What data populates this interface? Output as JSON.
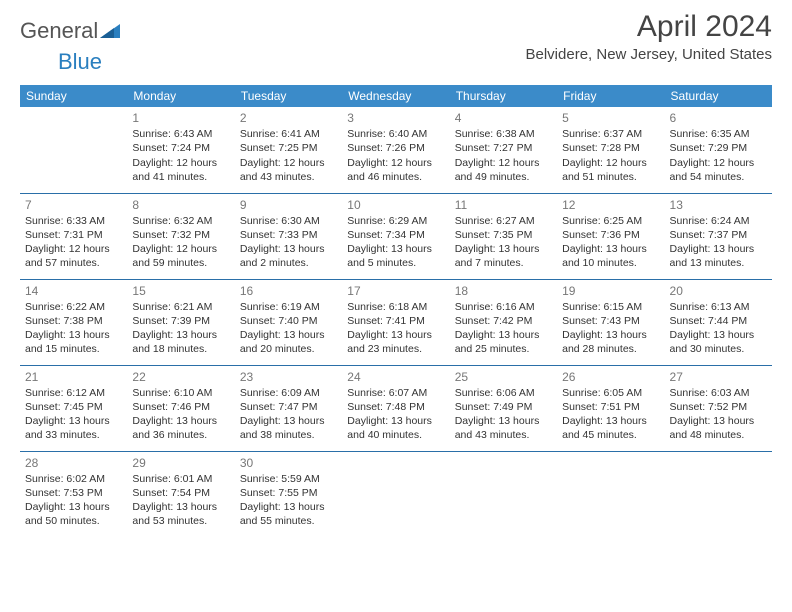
{
  "logo": {
    "text1": "General",
    "text2": "Blue",
    "accent": "#2a7fbf"
  },
  "title": "April 2024",
  "location": "Belvidere, New Jersey, United States",
  "colors": {
    "header_bg": "#3b8bc9",
    "header_text": "#ffffff",
    "row_divider": "#2a6fa8",
    "day_number": "#777777",
    "body_text": "#333333",
    "page_bg": "#ffffff"
  },
  "font": {
    "family": "Arial",
    "title_size": 30,
    "location_size": 15,
    "weekday_size": 12,
    "cell_size": 10.5
  },
  "weekdays": [
    "Sunday",
    "Monday",
    "Tuesday",
    "Wednesday",
    "Thursday",
    "Friday",
    "Saturday"
  ],
  "weeks": [
    [
      null,
      {
        "n": "1",
        "sr": "Sunrise: 6:43 AM",
        "ss": "Sunset: 7:24 PM",
        "d1": "Daylight: 12 hours",
        "d2": "and 41 minutes."
      },
      {
        "n": "2",
        "sr": "Sunrise: 6:41 AM",
        "ss": "Sunset: 7:25 PM",
        "d1": "Daylight: 12 hours",
        "d2": "and 43 minutes."
      },
      {
        "n": "3",
        "sr": "Sunrise: 6:40 AM",
        "ss": "Sunset: 7:26 PM",
        "d1": "Daylight: 12 hours",
        "d2": "and 46 minutes."
      },
      {
        "n": "4",
        "sr": "Sunrise: 6:38 AM",
        "ss": "Sunset: 7:27 PM",
        "d1": "Daylight: 12 hours",
        "d2": "and 49 minutes."
      },
      {
        "n": "5",
        "sr": "Sunrise: 6:37 AM",
        "ss": "Sunset: 7:28 PM",
        "d1": "Daylight: 12 hours",
        "d2": "and 51 minutes."
      },
      {
        "n": "6",
        "sr": "Sunrise: 6:35 AM",
        "ss": "Sunset: 7:29 PM",
        "d1": "Daylight: 12 hours",
        "d2": "and 54 minutes."
      }
    ],
    [
      {
        "n": "7",
        "sr": "Sunrise: 6:33 AM",
        "ss": "Sunset: 7:31 PM",
        "d1": "Daylight: 12 hours",
        "d2": "and 57 minutes."
      },
      {
        "n": "8",
        "sr": "Sunrise: 6:32 AM",
        "ss": "Sunset: 7:32 PM",
        "d1": "Daylight: 12 hours",
        "d2": "and 59 minutes."
      },
      {
        "n": "9",
        "sr": "Sunrise: 6:30 AM",
        "ss": "Sunset: 7:33 PM",
        "d1": "Daylight: 13 hours",
        "d2": "and 2 minutes."
      },
      {
        "n": "10",
        "sr": "Sunrise: 6:29 AM",
        "ss": "Sunset: 7:34 PM",
        "d1": "Daylight: 13 hours",
        "d2": "and 5 minutes."
      },
      {
        "n": "11",
        "sr": "Sunrise: 6:27 AM",
        "ss": "Sunset: 7:35 PM",
        "d1": "Daylight: 13 hours",
        "d2": "and 7 minutes."
      },
      {
        "n": "12",
        "sr": "Sunrise: 6:25 AM",
        "ss": "Sunset: 7:36 PM",
        "d1": "Daylight: 13 hours",
        "d2": "and 10 minutes."
      },
      {
        "n": "13",
        "sr": "Sunrise: 6:24 AM",
        "ss": "Sunset: 7:37 PM",
        "d1": "Daylight: 13 hours",
        "d2": "and 13 minutes."
      }
    ],
    [
      {
        "n": "14",
        "sr": "Sunrise: 6:22 AM",
        "ss": "Sunset: 7:38 PM",
        "d1": "Daylight: 13 hours",
        "d2": "and 15 minutes."
      },
      {
        "n": "15",
        "sr": "Sunrise: 6:21 AM",
        "ss": "Sunset: 7:39 PM",
        "d1": "Daylight: 13 hours",
        "d2": "and 18 minutes."
      },
      {
        "n": "16",
        "sr": "Sunrise: 6:19 AM",
        "ss": "Sunset: 7:40 PM",
        "d1": "Daylight: 13 hours",
        "d2": "and 20 minutes."
      },
      {
        "n": "17",
        "sr": "Sunrise: 6:18 AM",
        "ss": "Sunset: 7:41 PM",
        "d1": "Daylight: 13 hours",
        "d2": "and 23 minutes."
      },
      {
        "n": "18",
        "sr": "Sunrise: 6:16 AM",
        "ss": "Sunset: 7:42 PM",
        "d1": "Daylight: 13 hours",
        "d2": "and 25 minutes."
      },
      {
        "n": "19",
        "sr": "Sunrise: 6:15 AM",
        "ss": "Sunset: 7:43 PM",
        "d1": "Daylight: 13 hours",
        "d2": "and 28 minutes."
      },
      {
        "n": "20",
        "sr": "Sunrise: 6:13 AM",
        "ss": "Sunset: 7:44 PM",
        "d1": "Daylight: 13 hours",
        "d2": "and 30 minutes."
      }
    ],
    [
      {
        "n": "21",
        "sr": "Sunrise: 6:12 AM",
        "ss": "Sunset: 7:45 PM",
        "d1": "Daylight: 13 hours",
        "d2": "and 33 minutes."
      },
      {
        "n": "22",
        "sr": "Sunrise: 6:10 AM",
        "ss": "Sunset: 7:46 PM",
        "d1": "Daylight: 13 hours",
        "d2": "and 36 minutes."
      },
      {
        "n": "23",
        "sr": "Sunrise: 6:09 AM",
        "ss": "Sunset: 7:47 PM",
        "d1": "Daylight: 13 hours",
        "d2": "and 38 minutes."
      },
      {
        "n": "24",
        "sr": "Sunrise: 6:07 AM",
        "ss": "Sunset: 7:48 PM",
        "d1": "Daylight: 13 hours",
        "d2": "and 40 minutes."
      },
      {
        "n": "25",
        "sr": "Sunrise: 6:06 AM",
        "ss": "Sunset: 7:49 PM",
        "d1": "Daylight: 13 hours",
        "d2": "and 43 minutes."
      },
      {
        "n": "26",
        "sr": "Sunrise: 6:05 AM",
        "ss": "Sunset: 7:51 PM",
        "d1": "Daylight: 13 hours",
        "d2": "and 45 minutes."
      },
      {
        "n": "27",
        "sr": "Sunrise: 6:03 AM",
        "ss": "Sunset: 7:52 PM",
        "d1": "Daylight: 13 hours",
        "d2": "and 48 minutes."
      }
    ],
    [
      {
        "n": "28",
        "sr": "Sunrise: 6:02 AM",
        "ss": "Sunset: 7:53 PM",
        "d1": "Daylight: 13 hours",
        "d2": "and 50 minutes."
      },
      {
        "n": "29",
        "sr": "Sunrise: 6:01 AM",
        "ss": "Sunset: 7:54 PM",
        "d1": "Daylight: 13 hours",
        "d2": "and 53 minutes."
      },
      {
        "n": "30",
        "sr": "Sunrise: 5:59 AM",
        "ss": "Sunset: 7:55 PM",
        "d1": "Daylight: 13 hours",
        "d2": "and 55 minutes."
      },
      null,
      null,
      null,
      null
    ]
  ]
}
